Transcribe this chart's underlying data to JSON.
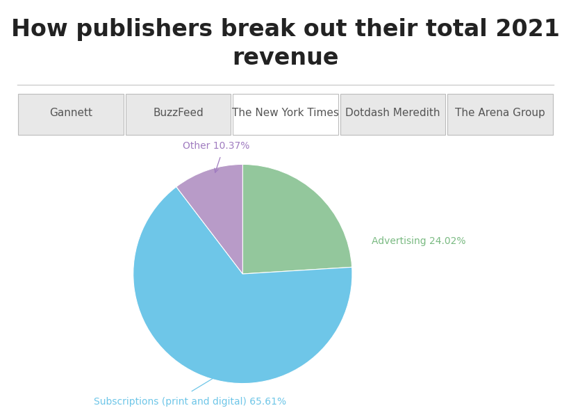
{
  "title": "How publishers break out their total 2021\nrevenue",
  "title_fontsize": 24,
  "title_fontweight": "bold",
  "title_color": "#222222",
  "slices": [
    65.61,
    24.02,
    10.37
  ],
  "slice_order": [
    "Subscriptions (print and digital) 65.61%",
    "Advertising 24.02%",
    "Other 10.37%"
  ],
  "colors": [
    "#6ec6e8",
    "#93c79c",
    "#b89bc8"
  ],
  "label_colors": [
    "#6ec6e8",
    "#7aba82",
    "#a07cc0"
  ],
  "startangle": 90,
  "counterclock": false,
  "tab_labels": [
    "Gannett",
    "BuzzFeed",
    "The New York Times",
    "Dotdash Meredith",
    "The Arena Group"
  ],
  "active_tab": 2,
  "background_color": "#ffffff",
  "tab_bg_color": "#e8e8e8",
  "active_tab_color": "#ffffff",
  "tab_fontsize": 11,
  "label_fontsize": 10
}
